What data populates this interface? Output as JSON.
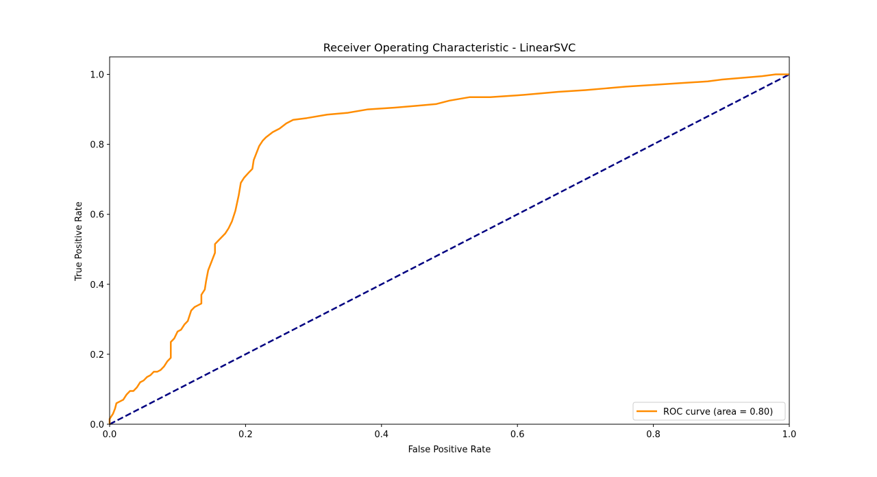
{
  "chart_data": {
    "type": "line",
    "title": "Receiver Operating Characteristic - LinearSVC",
    "xlabel": "False Positive Rate",
    "ylabel": "True Positive Rate",
    "xlim": [
      0.0,
      1.0
    ],
    "ylim": [
      0.0,
      1.05
    ],
    "x_ticks": [
      0.0,
      0.2,
      0.4,
      0.6,
      0.8,
      1.0
    ],
    "y_ticks": [
      0.0,
      0.2,
      0.4,
      0.6,
      0.8,
      1.0
    ],
    "x_tick_labels": [
      "0.0",
      "0.2",
      "0.4",
      "0.6",
      "0.8",
      "1.0"
    ],
    "y_tick_labels": [
      "0.0",
      "0.2",
      "0.4",
      "0.6",
      "0.8",
      "1.0"
    ],
    "grid": false,
    "legend_position": "lower-right",
    "series": [
      {
        "name": "ROC curve (area = 0.80)",
        "color": "#ff8c00",
        "style": "solid",
        "points": [
          [
            0.0,
            0.0
          ],
          [
            0.0,
            0.015
          ],
          [
            0.005,
            0.03
          ],
          [
            0.008,
            0.045
          ],
          [
            0.01,
            0.06
          ],
          [
            0.015,
            0.065
          ],
          [
            0.02,
            0.07
          ],
          [
            0.025,
            0.085
          ],
          [
            0.03,
            0.095
          ],
          [
            0.035,
            0.095
          ],
          [
            0.04,
            0.105
          ],
          [
            0.045,
            0.12
          ],
          [
            0.05,
            0.125
          ],
          [
            0.055,
            0.135
          ],
          [
            0.06,
            0.14
          ],
          [
            0.065,
            0.15
          ],
          [
            0.07,
            0.15
          ],
          [
            0.075,
            0.155
          ],
          [
            0.08,
            0.165
          ],
          [
            0.085,
            0.18
          ],
          [
            0.09,
            0.19
          ],
          [
            0.09,
            0.235
          ],
          [
            0.095,
            0.245
          ],
          [
            0.1,
            0.265
          ],
          [
            0.105,
            0.27
          ],
          [
            0.11,
            0.285
          ],
          [
            0.115,
            0.295
          ],
          [
            0.12,
            0.325
          ],
          [
            0.125,
            0.335
          ],
          [
            0.13,
            0.34
          ],
          [
            0.135,
            0.345
          ],
          [
            0.135,
            0.37
          ],
          [
            0.14,
            0.385
          ],
          [
            0.142,
            0.41
          ],
          [
            0.145,
            0.44
          ],
          [
            0.15,
            0.465
          ],
          [
            0.155,
            0.49
          ],
          [
            0.155,
            0.515
          ],
          [
            0.16,
            0.525
          ],
          [
            0.165,
            0.535
          ],
          [
            0.17,
            0.545
          ],
          [
            0.175,
            0.56
          ],
          [
            0.18,
            0.58
          ],
          [
            0.185,
            0.61
          ],
          [
            0.19,
            0.655
          ],
          [
            0.193,
            0.69
          ],
          [
            0.198,
            0.705
          ],
          [
            0.205,
            0.72
          ],
          [
            0.21,
            0.73
          ],
          [
            0.212,
            0.755
          ],
          [
            0.216,
            0.775
          ],
          [
            0.22,
            0.795
          ],
          [
            0.225,
            0.81
          ],
          [
            0.23,
            0.82
          ],
          [
            0.24,
            0.835
          ],
          [
            0.25,
            0.845
          ],
          [
            0.26,
            0.86
          ],
          [
            0.27,
            0.87
          ],
          [
            0.29,
            0.875
          ],
          [
            0.32,
            0.885
          ],
          [
            0.35,
            0.89
          ],
          [
            0.38,
            0.9
          ],
          [
            0.42,
            0.905
          ],
          [
            0.45,
            0.91
          ],
          [
            0.48,
            0.915
          ],
          [
            0.5,
            0.925
          ],
          [
            0.53,
            0.935
          ],
          [
            0.56,
            0.935
          ],
          [
            0.6,
            0.94
          ],
          [
            0.63,
            0.945
          ],
          [
            0.66,
            0.95
          ],
          [
            0.7,
            0.955
          ],
          [
            0.73,
            0.96
          ],
          [
            0.76,
            0.965
          ],
          [
            0.8,
            0.97
          ],
          [
            0.84,
            0.975
          ],
          [
            0.88,
            0.98
          ],
          [
            0.9,
            0.985
          ],
          [
            0.93,
            0.99
          ],
          [
            0.96,
            0.995
          ],
          [
            0.98,
            1.0
          ],
          [
            1.0,
            1.0
          ]
        ]
      },
      {
        "name": "",
        "color": "#000080",
        "style": "dashed",
        "points": [
          [
            0.0,
            0.0
          ],
          [
            1.0,
            1.0
          ]
        ]
      }
    ]
  }
}
